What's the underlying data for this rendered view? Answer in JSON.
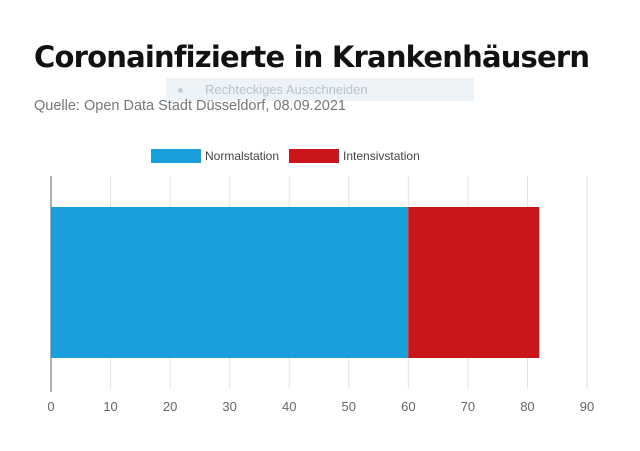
{
  "header": {
    "title": "Coronainfizierte in Krankenhäusern",
    "overlay_text": "Rechteckiges Ausschneiden",
    "subtitle": "Quelle: Open Data Stadt Düsseldorf, 08.09.2021"
  },
  "chart_data": {
    "type": "bar",
    "orientation": "horizontal",
    "stacked": true,
    "categories": [
      ""
    ],
    "series": [
      {
        "name": "Normalstation",
        "values": [
          60
        ],
        "color": "#1a9fdd"
      },
      {
        "name": "Intensivstation",
        "values": [
          22
        ],
        "color": "#c8161b"
      }
    ],
    "title": "Coronainfizierte in Krankenhäusern",
    "subtitle": "Quelle: Open Data Stadt Düsseldorf, 08.09.2021",
    "xlabel": "",
    "ylabel": "",
    "xlim": [
      0,
      90
    ],
    "xticks": [
      0,
      10,
      20,
      30,
      40,
      50,
      60,
      70,
      80,
      90
    ],
    "grid": true,
    "legend": "top-center"
  }
}
